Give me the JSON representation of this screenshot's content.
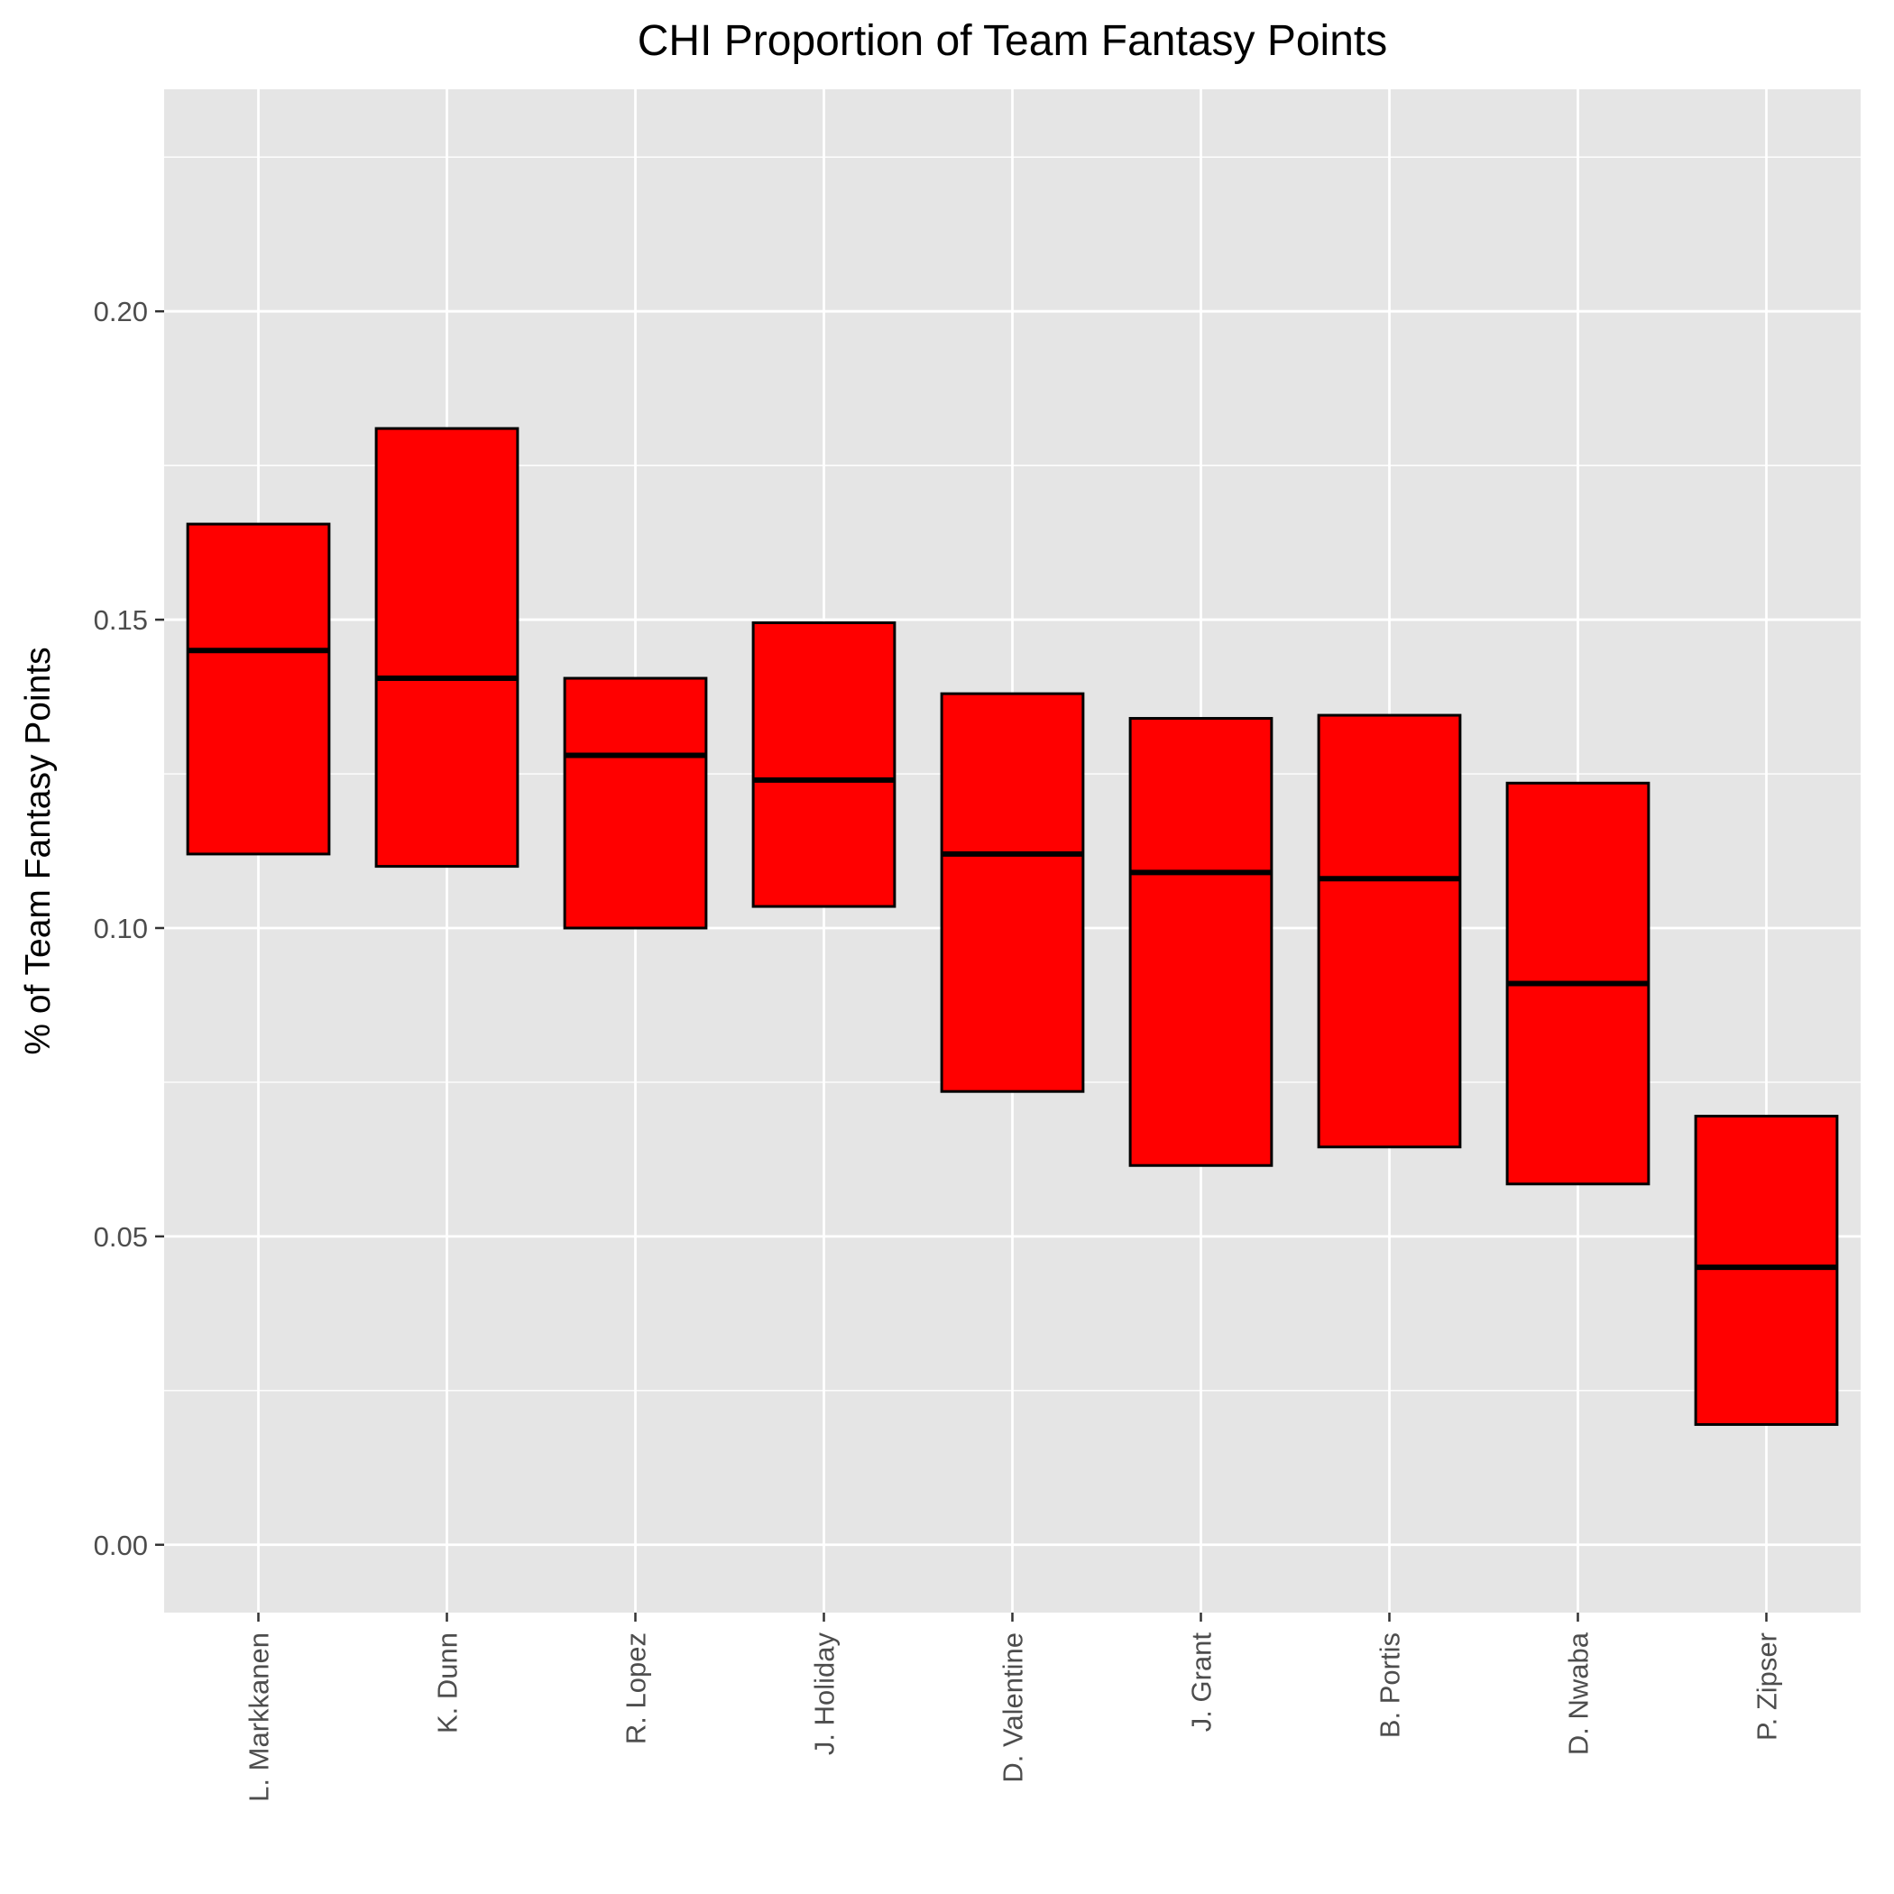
{
  "chart_data": {
    "type": "boxplot",
    "title": "CHI Proportion of Team Fantasy Points",
    "xlabel": "",
    "ylabel": "% of Team Fantasy Points",
    "ylim": [
      -0.011,
      0.236
    ],
    "y_ticks": [
      "0.00",
      "0.05",
      "0.10",
      "0.15",
      "0.20"
    ],
    "y_tick_values": [
      0.0,
      0.05,
      0.1,
      0.15,
      0.2
    ],
    "grid": true,
    "legend": "none",
    "categories": [
      "L. Markkanen",
      "K. Dunn",
      "R. Lopez",
      "J. Holiday",
      "D. Valentine",
      "J. Grant",
      "B. Portis",
      "D. Nwaba",
      "P. Zipser"
    ],
    "q1": [
      0.112,
      0.11,
      0.1,
      0.1035,
      0.0735,
      0.0615,
      0.0645,
      0.0585,
      0.0195
    ],
    "median": [
      0.145,
      0.1405,
      0.128,
      0.124,
      0.112,
      0.109,
      0.108,
      0.091,
      0.045
    ],
    "q3": [
      0.1655,
      0.181,
      0.1405,
      0.1495,
      0.138,
      0.134,
      0.1345,
      0.1235,
      0.0695
    ],
    "colors": {
      "box_fill": "#ff0000",
      "box_stroke": "#000000",
      "panel_background": "#e5e5e5",
      "grid": "#ffffff",
      "tick_text": "#4d4d4d",
      "title_text": "#000000"
    }
  }
}
